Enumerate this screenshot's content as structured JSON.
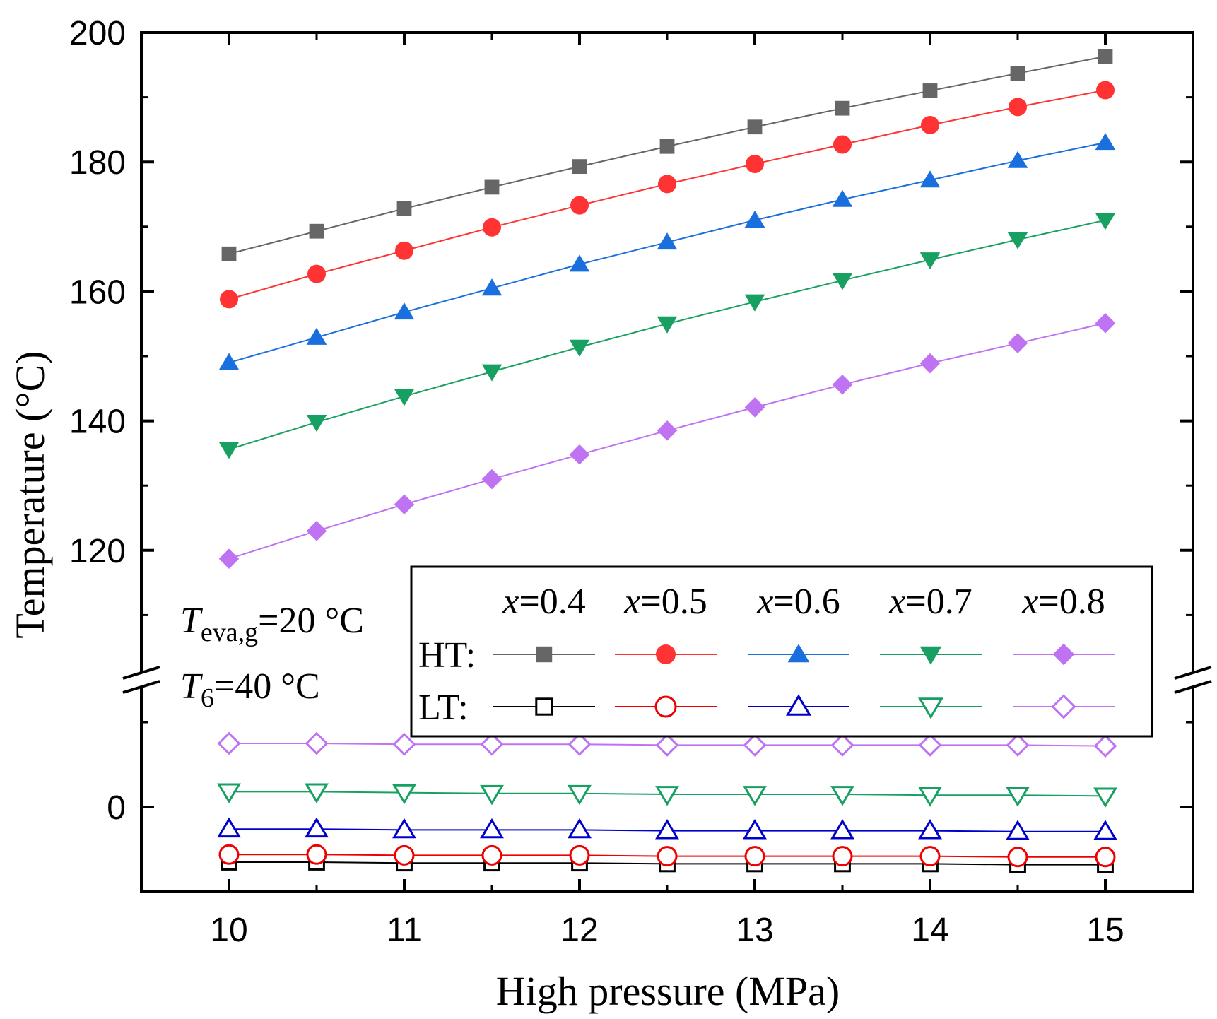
{
  "chart_data": {
    "type": "line",
    "xlabel": "High pressure (MPa)",
    "ylabel": "Temperature (°C)",
    "x": [
      10,
      10.5,
      11,
      11.5,
      12,
      12.5,
      13,
      13.5,
      14,
      14.5,
      15
    ],
    "x_ticks": [
      "10",
      "11",
      "12",
      "13",
      "14",
      "15"
    ],
    "xlim": [
      9.5,
      15.5
    ],
    "y_axis": {
      "broken": true,
      "upper_segment": {
        "range": [
          100,
          200
        ],
        "tick_labels": [
          "120",
          "140",
          "160",
          "180",
          "200"
        ]
      },
      "lower_segment": {
        "range": [
          -10,
          15
        ],
        "tick_labels": [
          "0"
        ]
      }
    },
    "legend": {
      "placement": "bottom-right",
      "columns": [
        "x=0.4",
        "x=0.5",
        "x=0.6",
        "x=0.7",
        "x=0.8"
      ],
      "rows": [
        "HT:",
        "LT:"
      ]
    },
    "annotations": {
      "line1": {
        "var": "T",
        "sub": "eva,g",
        "rest": "=20 °C"
      },
      "line2": {
        "var": "T",
        "sub": "6",
        "rest": "=40 °C"
      }
    },
    "series": [
      {
        "name": "HT x=0.4",
        "group": "HT",
        "x_label": "0.4",
        "color": "#666666",
        "marker": "square",
        "filled": true,
        "values": [
          165.8,
          169.3,
          172.8,
          176.1,
          179.3,
          182.4,
          185.4,
          188.3,
          191.0,
          193.7,
          196.3
        ]
      },
      {
        "name": "HT x=0.5",
        "group": "HT",
        "x_label": "0.5",
        "color": "#ff3333",
        "marker": "circle",
        "filled": true,
        "values": [
          158.8,
          162.7,
          166.3,
          169.9,
          173.3,
          176.6,
          179.7,
          182.7,
          185.7,
          188.5,
          191.1
        ]
      },
      {
        "name": "HT x=0.6",
        "group": "HT",
        "x_label": "0.6",
        "color": "#1a6fdf",
        "marker": "triangle-up",
        "filled": true,
        "values": [
          149.0,
          152.9,
          156.8,
          160.5,
          164.2,
          167.6,
          171.0,
          174.2,
          177.2,
          180.2,
          183.0
        ]
      },
      {
        "name": "HT x=0.7",
        "group": "HT",
        "x_label": "0.7",
        "color": "#17a061",
        "marker": "triangle-down",
        "filled": true,
        "values": [
          135.6,
          139.8,
          143.8,
          147.6,
          151.4,
          155.0,
          158.4,
          161.7,
          164.9,
          168.0,
          171.0
        ]
      },
      {
        "name": "HT x=0.8",
        "group": "HT",
        "x_label": "0.8",
        "color": "#bf73f2",
        "marker": "diamond",
        "filled": true,
        "values": [
          118.7,
          123.0,
          127.1,
          131.0,
          134.8,
          138.5,
          142.1,
          145.6,
          148.9,
          152.0,
          155.1
        ]
      },
      {
        "name": "LT x=0.4",
        "group": "LT",
        "x_label": "0.4",
        "color": "#000000",
        "marker": "square",
        "filled": false,
        "values": [
          -6.5,
          -6.5,
          -6.6,
          -6.6,
          -6.6,
          -6.7,
          -6.7,
          -6.7,
          -6.7,
          -6.8,
          -6.8
        ]
      },
      {
        "name": "LT x=0.5",
        "group": "LT",
        "x_label": "0.5",
        "color": "#ee0000",
        "marker": "circle",
        "filled": false,
        "values": [
          -5.6,
          -5.6,
          -5.7,
          -5.7,
          -5.7,
          -5.8,
          -5.8,
          -5.8,
          -5.8,
          -5.9,
          -5.9
        ]
      },
      {
        "name": "LT x=0.6",
        "group": "LT",
        "x_label": "0.6",
        "color": "#0000cc",
        "marker": "triangle-up",
        "filled": false,
        "values": [
          -2.6,
          -2.6,
          -2.7,
          -2.7,
          -2.7,
          -2.8,
          -2.8,
          -2.8,
          -2.8,
          -2.9,
          -2.9
        ]
      },
      {
        "name": "LT x=0.7",
        "group": "LT",
        "x_label": "0.7",
        "color": "#17a061",
        "marker": "triangle-down",
        "filled": false,
        "values": [
          1.8,
          1.8,
          1.7,
          1.6,
          1.6,
          1.5,
          1.5,
          1.5,
          1.4,
          1.4,
          1.3
        ]
      },
      {
        "name": "LT x=0.8",
        "group": "LT",
        "x_label": "0.8",
        "color": "#bf73f2",
        "marker": "diamond",
        "filled": false,
        "values": [
          7.5,
          7.5,
          7.4,
          7.4,
          7.4,
          7.3,
          7.3,
          7.3,
          7.3,
          7.3,
          7.2
        ]
      }
    ]
  }
}
